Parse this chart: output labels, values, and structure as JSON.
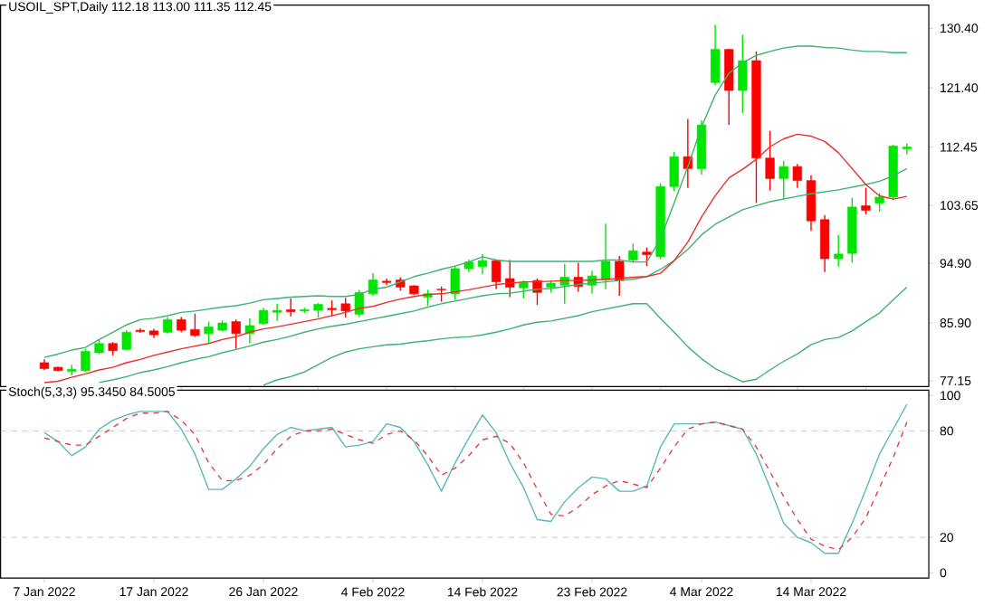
{
  "chart_data": [
    {
      "type": "candlestick",
      "title": "USOIL_SPT,Daily  112.18 113.00 111.35 112.45",
      "categories": [
        null,
        null,
        null,
        null,
        null,
        null,
        null,
        null,
        null,
        null,
        null,
        null,
        null,
        null,
        null,
        null,
        null,
        null,
        null,
        null,
        null,
        null,
        null,
        null,
        null,
        null,
        null,
        null,
        null,
        null,
        null,
        null,
        null,
        null,
        null,
        null,
        null,
        null,
        null,
        null,
        null,
        null,
        null,
        null,
        null,
        null,
        null,
        null,
        null,
        null,
        null,
        null,
        null,
        null,
        null,
        null,
        null,
        null,
        null,
        null,
        null,
        null,
        null,
        null
      ],
      "ohlc": [
        [
          79.9,
          80.4,
          78.8,
          79.0
        ],
        [
          79.2,
          79.3,
          78.6,
          78.7
        ],
        [
          78.6,
          79.6,
          78.0,
          78.9
        ],
        [
          78.7,
          82.0,
          78.5,
          81.6
        ],
        [
          81.4,
          83.3,
          81.2,
          82.8
        ],
        [
          82.8,
          83.0,
          81.0,
          81.7
        ],
        [
          81.9,
          84.8,
          81.8,
          84.5
        ],
        [
          84.8,
          85.1,
          84.4,
          84.6
        ],
        [
          84.7,
          85.0,
          83.6,
          84.1
        ],
        [
          84.5,
          86.8,
          84.3,
          86.4
        ],
        [
          86.4,
          86.8,
          84.5,
          84.8
        ],
        [
          84.9,
          87.3,
          83.8,
          84.0
        ],
        [
          84.3,
          86.1,
          82.8,
          85.3
        ],
        [
          84.8,
          86.3,
          84.6,
          85.9
        ],
        [
          86.1,
          86.4,
          82.0,
          84.3
        ],
        [
          84.3,
          86.6,
          82.8,
          85.5
        ],
        [
          85.8,
          88.2,
          85.6,
          87.8
        ],
        [
          87.5,
          88.8,
          86.2,
          87.8
        ],
        [
          87.9,
          89.6,
          86.9,
          87.6
        ],
        [
          87.7,
          88.2,
          87.4,
          87.9
        ],
        [
          87.8,
          88.9,
          86.7,
          88.7
        ],
        [
          88.1,
          89.3,
          86.9,
          87.9
        ],
        [
          88.8,
          89.7,
          86.7,
          87.7
        ],
        [
          87.2,
          90.9,
          86.8,
          90.5
        ],
        [
          90.3,
          93.4,
          90.0,
          92.4
        ],
        [
          92.2,
          92.6,
          91.6,
          92.0
        ],
        [
          92.4,
          92.8,
          90.8,
          91.3
        ],
        [
          91.5,
          91.6,
          90.1,
          90.3
        ],
        [
          89.8,
          90.9,
          88.5,
          90.3
        ],
        [
          91.0,
          91.4,
          89.1,
          90.9
        ],
        [
          90.3,
          94.5,
          89.4,
          94.1
        ],
        [
          94.1,
          95.5,
          93.6,
          95.1
        ],
        [
          94.4,
          96.3,
          93.3,
          95.3
        ],
        [
          95.3,
          95.5,
          91.0,
          92.1
        ],
        [
          92.6,
          95.4,
          89.8,
          91.3
        ],
        [
          91.2,
          92.3,
          89.6,
          92.0
        ],
        [
          92.3,
          92.6,
          88.6,
          90.5
        ],
        [
          91.3,
          92.3,
          90.5,
          91.9
        ],
        [
          91.6,
          94.8,
          88.8,
          92.8
        ],
        [
          92.8,
          95.0,
          90.6,
          91.4
        ],
        [
          91.6,
          93.8,
          90.3,
          93.0
        ],
        [
          92.4,
          100.9,
          91.0,
          95.2
        ],
        [
          95.2,
          96.0,
          90.0,
          92.3
        ],
        [
          95.4,
          97.9,
          95.0,
          96.8
        ],
        [
          96.6,
          97.3,
          94.5,
          96.2
        ],
        [
          95.9,
          107.0,
          95.5,
          106.5
        ],
        [
          106.5,
          111.7,
          105.8,
          111.0
        ],
        [
          111.0,
          116.7,
          106.3,
          109.2
        ],
        [
          109.2,
          116.5,
          108.3,
          115.8
        ],
        [
          122.2,
          130.9,
          121.8,
          127.2
        ],
        [
          127.2,
          127.3,
          115.8,
          121.0
        ],
        [
          121.0,
          129.4,
          117.6,
          125.5
        ],
        [
          125.5,
          126.9,
          104.0,
          110.8
        ],
        [
          110.8,
          114.9,
          105.9,
          107.7
        ],
        [
          107.7,
          110.4,
          104.7,
          109.5
        ],
        [
          109.5,
          109.9,
          106.3,
          107.4
        ],
        [
          107.4,
          108.2,
          99.8,
          101.3
        ],
        [
          101.5,
          102.2,
          93.6,
          95.6
        ],
        [
          95.6,
          99.2,
          94.4,
          96.3
        ],
        [
          96.4,
          104.8,
          95.0,
          103.4
        ],
        [
          103.6,
          106.3,
          102.3,
          102.9
        ],
        [
          104.0,
          105.5,
          102.7,
          104.9
        ],
        [
          104.9,
          112.8,
          104.4,
          112.6
        ],
        [
          112.18,
          113.0,
          111.35,
          112.45
        ]
      ],
      "colors": [
        "#ff0000",
        "#ff0000",
        "#00e600",
        "#00e600",
        "#00e600",
        "#ff0000",
        "#00e600",
        "#ff0000",
        "#ff0000",
        "#00e600",
        "#ff0000",
        "#ff0000",
        "#00e600",
        "#00e600",
        "#ff0000",
        "#00e600",
        "#00e600",
        "#00e600",
        "#ff0000",
        "#00e600",
        "#00e600",
        "#ff0000",
        "#ff0000",
        "#00e600",
        "#00e600",
        "#ff0000",
        "#ff0000",
        "#ff0000",
        "#00e600",
        "#ff0000",
        "#00e600",
        "#00e600",
        "#00e600",
        "#ff0000",
        "#ff0000",
        "#00e600",
        "#ff0000",
        "#00e600",
        "#00e600",
        "#ff0000",
        "#00e600",
        "#00e600",
        "#ff0000",
        "#00e600",
        "#ff0000",
        "#00e600",
        "#00e600",
        "#ff0000",
        "#00e600",
        "#00e600",
        "#ff0000",
        "#00e600",
        "#ff0000",
        "#ff0000",
        "#00e600",
        "#ff0000",
        "#ff0000",
        "#ff0000",
        "#00e600",
        "#00e600",
        "#ff0000",
        "#00e600",
        "#00e600",
        "#00e600"
      ],
      "series": [
        {
          "type": "line",
          "color": "#3cb371",
          "values": [
            80.7,
            81.2,
            81.8,
            82.2,
            83.4,
            84.5,
            85.6,
            86.4,
            86.6,
            87.0,
            87.5,
            87.7,
            88.0,
            88.3,
            88.5,
            88.9,
            89.4,
            89.6,
            89.8,
            89.9,
            90.0,
            89.9,
            89.9,
            90.2,
            91.0,
            91.3,
            92.1,
            92.9,
            93.4,
            94.0,
            94.5,
            95.1,
            95.9,
            95.4,
            95.2,
            95.2,
            95.2,
            95.2,
            95.2,
            95.2,
            95.2,
            95.4,
            95.4,
            95.1,
            95.1,
            98.6,
            104.0,
            109.5,
            115.5,
            120.3,
            123.6,
            125.2,
            126.3,
            126.9,
            127.4,
            127.7,
            127.7,
            127.5,
            127.4,
            127.1,
            126.9,
            126.9,
            126.7,
            126.7
          ]
        },
        {
          "type": "line",
          "color": "#3cb371",
          "values": [
            null,
            null,
            null,
            null,
            76.9,
            77.3,
            77.8,
            78.4,
            78.8,
            79.3,
            79.9,
            80.4,
            80.8,
            81.4,
            81.9,
            82.4,
            83.0,
            83.4,
            83.9,
            84.5,
            85.0,
            85.4,
            85.7,
            86.1,
            86.5,
            86.9,
            87.3,
            87.7,
            88.3,
            88.8,
            89.2,
            89.6,
            90.0,
            90.3,
            90.4,
            90.7,
            91.0,
            91.1,
            91.4,
            91.7,
            91.9,
            92.1,
            92.3,
            92.5,
            92.9,
            94.0,
            95.3,
            97.0,
            99.2,
            100.8,
            101.9,
            103.0,
            103.6,
            104.2,
            104.6,
            105.0,
            105.4,
            105.7,
            106.0,
            106.4,
            106.8,
            107.3,
            108.1,
            109.2
          ]
        },
        {
          "type": "line",
          "color": "#3cb371",
          "values": [
            null,
            null,
            null,
            null,
            null,
            null,
            null,
            null,
            null,
            null,
            null,
            null,
            null,
            null,
            null,
            null,
            76.5,
            77.3,
            77.8,
            78.5,
            79.6,
            80.7,
            81.5,
            82.0,
            82.3,
            82.6,
            82.7,
            83.0,
            83.2,
            83.5,
            83.7,
            83.8,
            84.1,
            84.5,
            85.0,
            85.6,
            86.0,
            86.2,
            86.6,
            87.0,
            87.6,
            88.0,
            88.4,
            88.8,
            88.8,
            86.6,
            84.5,
            82.3,
            80.5,
            79.0,
            78.0,
            77.0,
            77.4,
            78.8,
            80.1,
            81.2,
            82.6,
            83.4,
            83.7,
            84.7,
            86.1,
            87.4,
            89.4,
            91.3
          ]
        },
        {
          "type": "line",
          "color": "#e8302a",
          "values": [
            76.9,
            77.1,
            77.7,
            78.2,
            78.8,
            79.2,
            79.9,
            80.4,
            81.0,
            81.5,
            82.0,
            82.4,
            82.8,
            83.4,
            83.8,
            84.5,
            85.0,
            85.3,
            85.7,
            86.1,
            86.5,
            87.0,
            87.5,
            88.1,
            88.4,
            89.0,
            89.5,
            89.9,
            90.2,
            90.3,
            90.6,
            90.9,
            91.3,
            91.7,
            91.9,
            92.1,
            92.1,
            92.2,
            92.3,
            92.3,
            92.4,
            92.5,
            92.6,
            92.8,
            92.9,
            93.4,
            95.3,
            98.1,
            101.9,
            105.1,
            107.8,
            109.1,
            110.6,
            112.5,
            113.7,
            114.4,
            114.1,
            113.3,
            111.6,
            109.2,
            106.8,
            105.1,
            104.6,
            105.0
          ]
        }
      ],
      "ylim": [
        76.3,
        133.9
      ],
      "yticks": [
        {
          "value": 130.4,
          "label": "130.40"
        },
        {
          "value": 121.4,
          "label": "121.40"
        },
        {
          "value": 112.45,
          "label": "112.45"
        },
        {
          "value": 103.65,
          "label": "103.65"
        },
        {
          "value": 94.9,
          "label": "94.90"
        },
        {
          "value": 85.9,
          "label": "85.90"
        },
        {
          "value": 77.15,
          "label": "77.15"
        }
      ],
      "tick_labels": "y"
    },
    {
      "type": "line",
      "title": "Stoch(5,3,3) 95.3450 84.5005",
      "categories": [
        "7 Jan 2022",
        null,
        null,
        null,
        null,
        null,
        null,
        null,
        "17 Jan 2022",
        null,
        null,
        null,
        null,
        null,
        null,
        null,
        "26 Jan 2022",
        null,
        null,
        null,
        null,
        null,
        null,
        null,
        "4 Feb 2022",
        null,
        null,
        null,
        null,
        null,
        null,
        null,
        "14 Feb 2022",
        null,
        null,
        null,
        null,
        null,
        null,
        null,
        "23 Feb 2022",
        null,
        null,
        null,
        null,
        null,
        null,
        null,
        "4 Mar 2022",
        null,
        null,
        null,
        null,
        null,
        null,
        null,
        "14 Mar 2022",
        null,
        null,
        null,
        null,
        null,
        null,
        null
      ],
      "series": [
        {
          "color": "#5ab8b8",
          "line_style": "solid",
          "values": [
            79,
            74,
            66,
            71,
            81,
            86,
            89,
            91,
            91,
            91,
            81,
            67,
            47,
            47,
            53,
            60,
            70,
            78,
            82,
            80,
            81,
            82,
            71,
            72,
            74,
            84,
            82,
            74,
            61,
            46,
            62,
            76,
            89,
            79,
            62,
            48,
            30,
            29,
            40,
            48,
            54,
            53,
            46,
            46,
            49,
            71,
            84,
            84,
            84,
            85,
            83,
            81,
            67,
            48,
            28,
            20,
            17,
            11,
            11,
            28,
            47,
            67,
            81,
            95
          ]
        },
        {
          "color": "#e04040",
          "line_style": "dashed",
          "values": [
            76,
            74,
            72,
            72,
            77,
            82,
            87,
            90,
            90,
            91,
            86,
            78,
            62,
            52,
            52,
            55,
            61,
            70,
            77,
            80,
            80,
            81,
            78,
            75,
            73,
            78,
            80,
            75,
            66,
            55,
            59,
            66,
            75,
            77,
            73,
            62,
            47,
            33,
            32,
            37,
            44,
            49,
            52,
            50,
            48,
            59,
            71,
            81,
            84,
            85,
            83,
            81,
            71,
            57,
            43,
            30,
            19,
            15,
            13,
            20,
            31,
            48,
            65,
            85
          ]
        }
      ],
      "ylim": [
        -3,
        103
      ],
      "yticks": [
        0,
        20,
        80,
        100
      ],
      "ref_lines": [
        {
          "axis": "y",
          "value": 80,
          "color": "#c8c8c8",
          "line_style": "dashed"
        },
        {
          "axis": "y",
          "value": 20,
          "color": "#c8c8c8",
          "line_style": "dashed"
        }
      ]
    }
  ]
}
